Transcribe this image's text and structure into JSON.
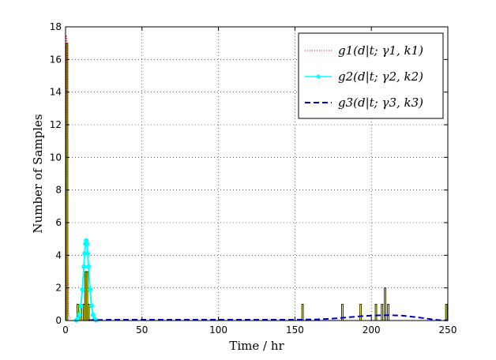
{
  "chart_data": {
    "type": "bar",
    "xlabel": "Time / hr",
    "ylabel": "Number of Samples",
    "xlim": [
      0,
      250
    ],
    "ylim": [
      0,
      18
    ],
    "xticks": [
      0,
      50,
      100,
      150,
      200,
      250
    ],
    "yticks": [
      0,
      2,
      4,
      6,
      8,
      10,
      12,
      14,
      16,
      18
    ],
    "grid": true,
    "legend_position": "top-right",
    "histogram": {
      "color": "#ffff00",
      "edgecolor": "#000000",
      "bins": [
        {
          "x": 1,
          "value": 17
        },
        {
          "x": 8,
          "value": 1
        },
        {
          "x": 10,
          "value": 1
        },
        {
          "x": 12,
          "value": 1
        },
        {
          "x": 13,
          "value": 3
        },
        {
          "x": 14,
          "value": 3
        },
        {
          "x": 15,
          "value": 1
        },
        {
          "x": 155,
          "value": 1
        },
        {
          "x": 181,
          "value": 1
        },
        {
          "x": 193,
          "value": 1
        },
        {
          "x": 203,
          "value": 1
        },
        {
          "x": 207,
          "value": 1
        },
        {
          "x": 209,
          "value": 2
        },
        {
          "x": 211,
          "value": 1
        },
        {
          "x": 249,
          "value": 1
        }
      ]
    },
    "series": [
      {
        "name": "g1(d|t; γ1, k1)",
        "color": "#ff0000",
        "style": "dotted",
        "x": [
          0,
          0.5,
          1,
          1.5,
          2,
          3
        ],
        "y": [
          0,
          17.5,
          17.2,
          5,
          0.5,
          0
        ]
      },
      {
        "name": "g2(d|t; γ2, k2)",
        "color": "#00ffff",
        "style": "solid-markers",
        "x": [
          7,
          8,
          9,
          10,
          11,
          12,
          12.5,
          13,
          13.5,
          14,
          14.5,
          15,
          16,
          17,
          18,
          19,
          20
        ],
        "y": [
          0.02,
          0.1,
          0.35,
          0.9,
          1.9,
          3.3,
          4.1,
          4.7,
          4.9,
          4.7,
          4.1,
          3.3,
          1.9,
          0.9,
          0.35,
          0.1,
          0.02
        ]
      },
      {
        "name": "g3(d|t; γ3, k3)",
        "color": "#0000cc",
        "style": "dashed",
        "x": [
          15,
          30,
          50,
          100,
          150,
          165,
          175,
          185,
          195,
          205,
          212,
          220,
          230,
          240,
          245,
          250
        ],
        "y": [
          0.02,
          0.05,
          0.05,
          0.05,
          0.05,
          0.07,
          0.12,
          0.2,
          0.28,
          0.32,
          0.33,
          0.3,
          0.2,
          0.07,
          0.02,
          0.01
        ]
      }
    ]
  }
}
